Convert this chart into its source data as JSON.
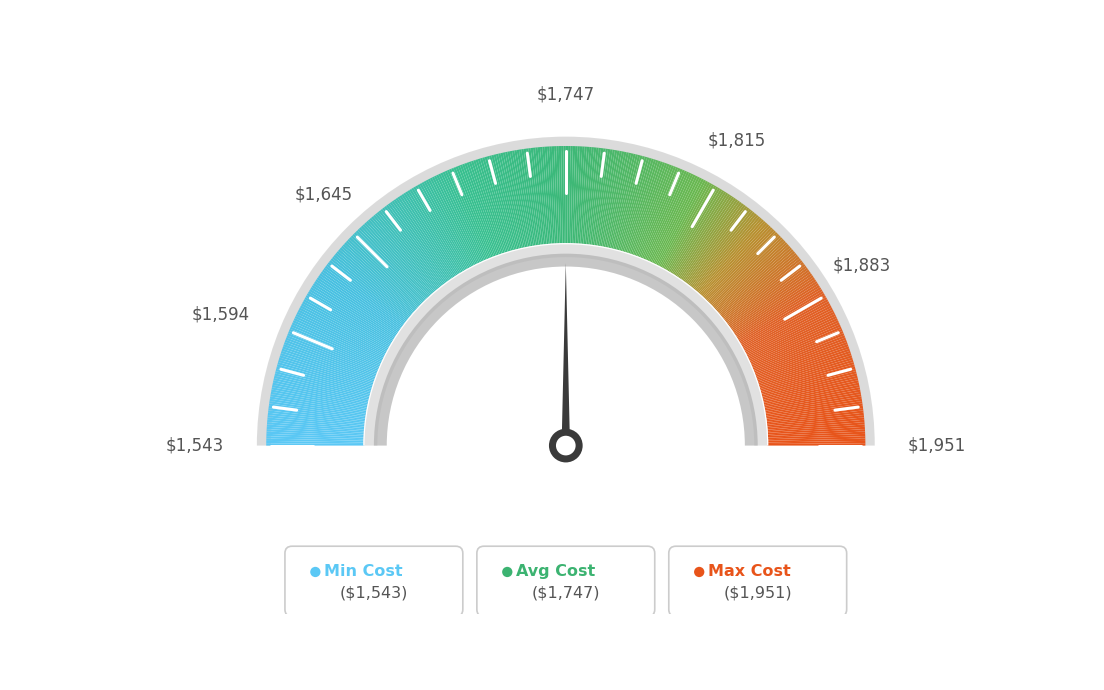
{
  "min_val": 1543,
  "max_val": 1951,
  "avg_val": 1747,
  "tick_labels": [
    "$1,543",
    "$1,594",
    "$1,645",
    "$1,747",
    "$1,815",
    "$1,883",
    "$1,951"
  ],
  "tick_values": [
    1543,
    1594,
    1645,
    1747,
    1815,
    1883,
    1951
  ],
  "all_tick_values": [
    1543,
    1560,
    1577,
    1594,
    1611,
    1628,
    1645,
    1662,
    1679,
    1696,
    1713,
    1730,
    1747,
    1764,
    1781,
    1798,
    1815,
    1832,
    1849,
    1866,
    1883,
    1900,
    1917,
    1934,
    1951
  ],
  "legend_items": [
    {
      "label": "Min Cost",
      "value": "($1,543)",
      "color": "#5bc8f5"
    },
    {
      "label": "Avg Cost",
      "value": "($1,747)",
      "color": "#3cb371"
    },
    {
      "label": "Max Cost",
      "value": "($1,951)",
      "color": "#e8541a"
    }
  ],
  "background_color": "#ffffff",
  "color_stops": [
    [
      0.0,
      "#5bc8f5"
    ],
    [
      0.25,
      "#4db8c8"
    ],
    [
      0.5,
      "#3cb87a"
    ],
    [
      0.68,
      "#7bbf50"
    ],
    [
      0.78,
      "#c8a030"
    ],
    [
      0.88,
      "#e06020"
    ],
    [
      1.0,
      "#e8541a"
    ]
  ]
}
